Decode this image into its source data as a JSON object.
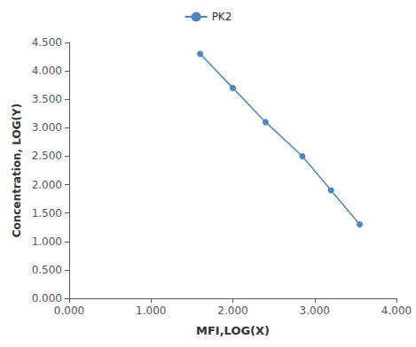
{
  "chart_data": {
    "type": "line",
    "x": [
      1.6,
      2.0,
      2.4,
      2.85,
      3.2,
      3.55
    ],
    "series": [
      {
        "name": "PK2",
        "color": "#4e86c0",
        "marker": "circle",
        "values": [
          4.3,
          3.7,
          3.1,
          2.5,
          1.9,
          1.3
        ]
      }
    ],
    "xlabel": "MFI,LOG(X)",
    "ylabel": "Concentration, LOG(Y)",
    "xlim": [
      0.0,
      4.0
    ],
    "ylim": [
      0.0,
      4.5
    ],
    "xticks": [
      {
        "value": 0,
        "label": "0.000"
      },
      {
        "value": 1,
        "label": "1.000"
      },
      {
        "value": 2,
        "label": "2.000"
      },
      {
        "value": 3,
        "label": "3.000"
      },
      {
        "value": 4,
        "label": "4.000"
      }
    ],
    "yticks": [
      {
        "value": 0,
        "label": "0.000"
      },
      {
        "value": 0.5,
        "label": "0.500"
      },
      {
        "value": 1,
        "label": "1.000"
      },
      {
        "value": 1.5,
        "label": "1.500"
      },
      {
        "value": 2,
        "label": "2.000"
      },
      {
        "value": 2.5,
        "label": "2.500"
      },
      {
        "value": 3,
        "label": "3.000"
      },
      {
        "value": 3.5,
        "label": "3.500"
      },
      {
        "value": 4,
        "label": "4.000"
      },
      {
        "value": 4.5,
        "label": "4.500"
      }
    ],
    "grid": false,
    "legend": "top"
  }
}
